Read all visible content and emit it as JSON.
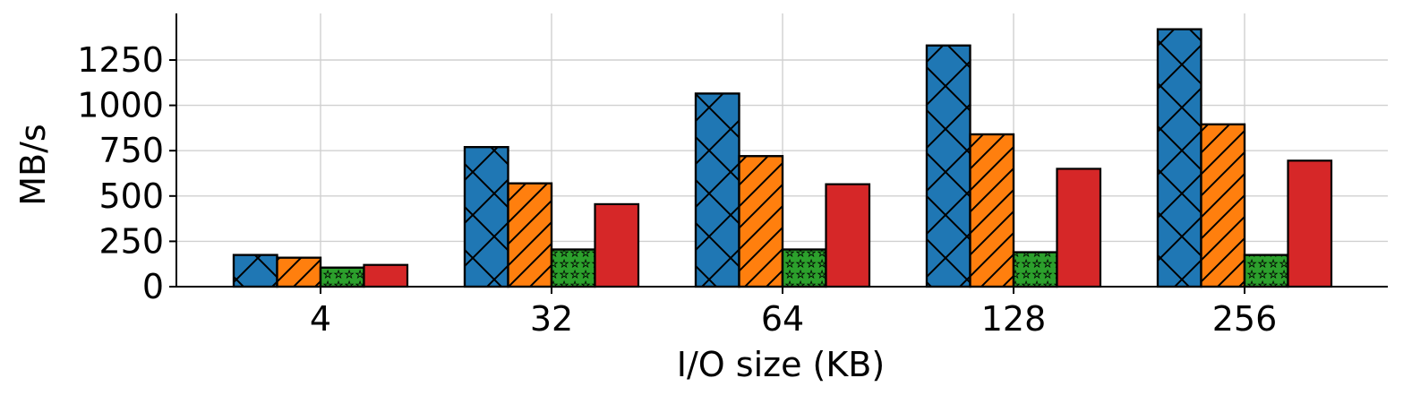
{
  "chart_data": {
    "type": "bar",
    "title": "",
    "xlabel": "I/O size (KB)",
    "ylabel": "MB/s",
    "categories": [
      "4",
      "32",
      "64",
      "128",
      "256"
    ],
    "ylim": [
      0,
      1500
    ],
    "yticks": [
      0,
      250,
      500,
      750,
      1000,
      1250
    ],
    "grid": true,
    "legend": "none",
    "series": [
      {
        "values": [
          175,
          770,
          1065,
          1330,
          1420
        ],
        "color": "#1f77b4",
        "hatch": "cross-diagonal"
      },
      {
        "values": [
          160,
          570,
          720,
          840,
          895
        ],
        "color": "#ff7f0e",
        "hatch": "forward-diagonal"
      },
      {
        "values": [
          105,
          205,
          205,
          190,
          175
        ],
        "color": "#2ca02c",
        "hatch": "stars"
      },
      {
        "values": [
          120,
          455,
          565,
          650,
          695
        ],
        "color": "#d62728",
        "hatch": "none"
      }
    ]
  }
}
